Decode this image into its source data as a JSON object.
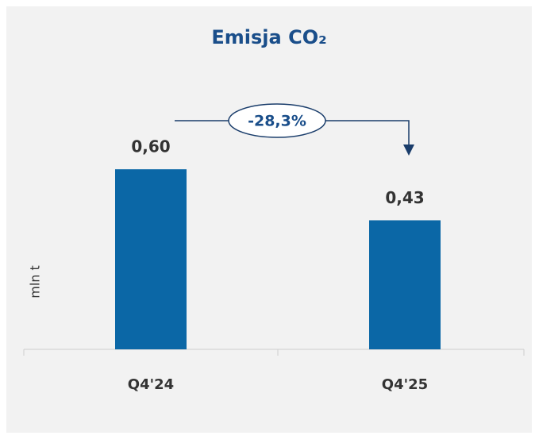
{
  "chart_data": {
    "type": "bar",
    "title": "Emisja CO₂",
    "y_label": "mln t",
    "categories": [
      "Q4'24",
      "Q4'25"
    ],
    "values": [
      0.6,
      0.43
    ],
    "value_labels": [
      "0,60",
      "0,43"
    ],
    "color": "#0b67a6",
    "ylim": [
      0,
      1.0
    ],
    "annotation": "-28,3%"
  }
}
